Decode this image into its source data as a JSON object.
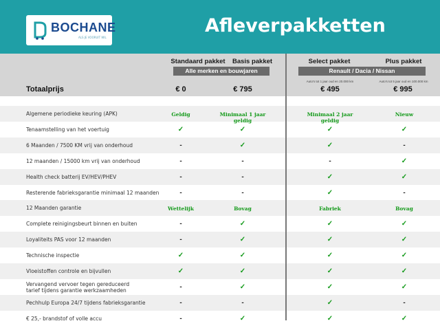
{
  "header": {
    "logo_text": "BOCHANE",
    "logo_sub": "ALS JE VOORUIT WIL",
    "title": "Afleverpakketten"
  },
  "columns": [
    {
      "name": "Standaard pakket",
      "price": "€ 0"
    },
    {
      "name": "Basis pakket",
      "price": "€ 795"
    },
    {
      "name": "Select pakket",
      "price": "€ 495",
      "note": "Auto's tot 1 jaar oud en 20.000 km"
    },
    {
      "name": "Plus pakket",
      "price": "€ 995",
      "note": "Auto's tot 5 jaar oud en 100.000 km"
    }
  ],
  "groups": {
    "left": "Alle merken en bouwjaren",
    "right": "Renault / Dacia / Nissan"
  },
  "total_label": "Totaalprijs",
  "colors": {
    "header": "#1f9fa6",
    "green": "#149a1a",
    "band": "#d5d5d5"
  },
  "rows": [
    {
      "label": "Algemene periodieke keuring (APK)",
      "cells": [
        "Geldig",
        "Minimaal 1 jaar geldig",
        "Minimaal 2 jaar geldig",
        "Nieuw"
      ]
    },
    {
      "label": "Tenaamstelling van het voertuig",
      "cells": [
        "✓",
        "✓",
        "✓",
        "✓"
      ]
    },
    {
      "label": "6 Maanden / 7500 KM vrij van onderhoud",
      "cells": [
        "-",
        "✓",
        "✓",
        "-"
      ]
    },
    {
      "label": "12 maanden / 15000 km vrij van onderhoud",
      "cells": [
        "-",
        "-",
        "-",
        "✓"
      ]
    },
    {
      "label": "Health check batterij EV/HEV/PHEV",
      "cells": [
        "-",
        "-",
        "✓",
        "✓"
      ]
    },
    {
      "label": "Resterende fabrieksgarantie minimaal 12 maanden",
      "cells": [
        "-",
        "-",
        "✓",
        "-"
      ]
    },
    {
      "label": "12 Maanden  garantie",
      "cells": [
        "Wettelijk",
        "Bovag",
        "Fabriek",
        "Bovag"
      ]
    },
    {
      "label": "Complete reinigingsbeurt binnen en buiten",
      "cells": [
        "-",
        "✓",
        "✓",
        "✓"
      ]
    },
    {
      "label": "Loyaliteits PAS voor 12 maanden",
      "cells": [
        "-",
        "✓",
        "✓",
        "✓"
      ]
    },
    {
      "label": "Technische inspectie",
      "cells": [
        "✓",
        "✓",
        "✓",
        "✓"
      ]
    },
    {
      "label": "Vloeistoffen controle en bijvullen",
      "cells": [
        "✓",
        "✓",
        "✓",
        "✓"
      ]
    },
    {
      "label": "Vervangend vervoer tegen gereduceerd tarief tijdens garantie werkzaamheden",
      "cells": [
        "-",
        "✓",
        "✓",
        "✓"
      ]
    },
    {
      "label": "Pechhulp Europa 24/7 tijdens fabrieksgarantie",
      "cells": [
        "-",
        "-",
        "✓",
        "-"
      ]
    },
    {
      "label": "€ 25,- brandstof of  volle accu",
      "cells": [
        "-",
        "✓",
        "✓",
        "✓"
      ]
    }
  ]
}
